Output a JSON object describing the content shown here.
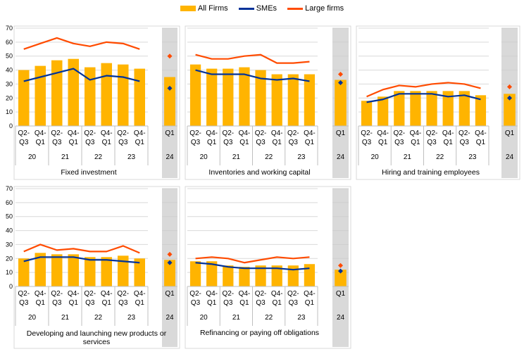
{
  "legend": {
    "all_firms": "All Firms",
    "smes": "SMEs",
    "large_firms": "Large firms"
  },
  "colors": {
    "all_firms": "#FFB400",
    "smes": "#003299",
    "large_firms": "#FF4B00",
    "highlight_band": "#D9D9D9",
    "grid": "#D9D9D9"
  },
  "chart_data": [
    {
      "type": "bar",
      "title": "Fixed investment",
      "ylim": [
        0,
        70
      ],
      "yticks": [
        0,
        10,
        20,
        30,
        40,
        50,
        60,
        70
      ],
      "categories": [
        "Q2-Q3 20",
        "Q4-Q1 20/21",
        "Q2-Q3 21",
        "Q4-Q1 21/22",
        "Q2-Q3 22",
        "Q4-Q1 22/23",
        "Q2-Q3 23",
        "Q4-Q1 23/24"
      ],
      "series": [
        {
          "name": "All Firms",
          "kind": "bar",
          "values": [
            40,
            43,
            47,
            48,
            42,
            45,
            44,
            41
          ]
        },
        {
          "name": "SMEs",
          "kind": "line",
          "values": [
            32,
            35,
            38,
            41,
            33,
            36,
            35,
            32
          ]
        },
        {
          "name": "Large firms",
          "kind": "line",
          "values": [
            55,
            59,
            63,
            59,
            57,
            60,
            59,
            55
          ]
        }
      ],
      "latest": {
        "period": "Q1 24",
        "all_firms": 35,
        "smes": 27,
        "large_firms": 50
      }
    },
    {
      "type": "bar",
      "title": "Inventories and working capital",
      "ylim": [
        0,
        70
      ],
      "yticks": [
        0,
        10,
        20,
        30,
        40,
        50,
        60,
        70
      ],
      "categories": [
        "Q2-Q3 20",
        "Q4-Q1 20/21",
        "Q2-Q3 21",
        "Q4-Q1 21/22",
        "Q2-Q3 22",
        "Q4-Q1 22/23",
        "Q2-Q3 23",
        "Q4-Q1 23/24"
      ],
      "series": [
        {
          "name": "All Firms",
          "kind": "bar",
          "values": [
            44,
            41,
            41,
            42,
            40,
            37,
            37,
            37
          ]
        },
        {
          "name": "SMEs",
          "kind": "line",
          "values": [
            40,
            37,
            37,
            37,
            34,
            33,
            34,
            32
          ]
        },
        {
          "name": "Large firms",
          "kind": "line",
          "values": [
            51,
            48,
            48,
            50,
            51,
            45,
            45,
            46
          ]
        }
      ],
      "latest": {
        "period": "Q1 24",
        "all_firms": 33,
        "smes": 31,
        "large_firms": 37
      }
    },
    {
      "type": "bar",
      "title": "Hiring and training employees",
      "ylim": [
        0,
        70
      ],
      "yticks": [
        0,
        10,
        20,
        30,
        40,
        50,
        60,
        70
      ],
      "categories": [
        "Q2-Q3 20",
        "Q4-Q1 20/21",
        "Q2-Q3 21",
        "Q4-Q1 21/22",
        "Q2-Q3 22",
        "Q4-Q1 22/23",
        "Q2-Q3 23",
        "Q4-Q1 23/24"
      ],
      "series": [
        {
          "name": "All Firms",
          "kind": "bar",
          "values": [
            18,
            21,
            25,
            25,
            25,
            25,
            25,
            22
          ]
        },
        {
          "name": "SMEs",
          "kind": "line",
          "values": [
            17,
            19,
            23,
            23,
            23,
            21,
            22,
            19
          ]
        },
        {
          "name": "Large firms",
          "kind": "line",
          "values": [
            21,
            26,
            29,
            28,
            30,
            31,
            30,
            27
          ]
        }
      ],
      "latest": {
        "period": "Q1 24",
        "all_firms": 23,
        "smes": 20,
        "large_firms": 28
      }
    },
    {
      "type": "bar",
      "title": "Developing and launching new products or services",
      "ylim": [
        0,
        70
      ],
      "yticks": [
        0,
        10,
        20,
        30,
        40,
        50,
        60,
        70
      ],
      "categories": [
        "Q2-Q3 20",
        "Q4-Q1 20/21",
        "Q2-Q3 21",
        "Q4-Q1 21/22",
        "Q2-Q3 22",
        "Q4-Q1 22/23",
        "Q2-Q3 23",
        "Q4-Q1 23/24"
      ],
      "series": [
        {
          "name": "All Firms",
          "kind": "bar",
          "values": [
            20,
            24,
            23,
            23,
            21,
            21,
            22,
            20
          ]
        },
        {
          "name": "SMEs",
          "kind": "line",
          "values": [
            18,
            21,
            21,
            21,
            19,
            19,
            18,
            17
          ]
        },
        {
          "name": "Large firms",
          "kind": "line",
          "values": [
            25,
            30,
            26,
            27,
            25,
            25,
            29,
            24
          ]
        }
      ],
      "latest": {
        "period": "Q1 24",
        "all_firms": 19,
        "smes": 17,
        "large_firms": 23
      }
    },
    {
      "type": "bar",
      "title": "Refinancing or paying off obligations",
      "ylim": [
        0,
        70
      ],
      "yticks": [
        0,
        10,
        20,
        30,
        40,
        50,
        60,
        70
      ],
      "categories": [
        "Q2-Q3 20",
        "Q4-Q1 20/21",
        "Q2-Q3 21",
        "Q4-Q1 21/22",
        "Q2-Q3 22",
        "Q4-Q1 22/23",
        "Q2-Q3 23",
        "Q4-Q1 23/24"
      ],
      "series": [
        {
          "name": "All Firms",
          "kind": "bar",
          "values": [
            18,
            18,
            15,
            14,
            15,
            15,
            15,
            16
          ]
        },
        {
          "name": "SMEs",
          "kind": "line",
          "values": [
            17,
            16,
            14,
            13,
            13,
            13,
            12,
            13
          ]
        },
        {
          "name": "Large firms",
          "kind": "line",
          "values": [
            20,
            21,
            20,
            17,
            19,
            21,
            20,
            21
          ]
        }
      ],
      "latest": {
        "period": "Q1 24",
        "all_firms": 12,
        "smes": 11,
        "large_firms": 15
      }
    }
  ],
  "axis_labels": {
    "x_top": [
      "Q2-",
      "Q4-",
      "Q2-",
      "Q4-",
      "Q2-",
      "Q4-",
      "Q2-",
      "Q4-"
    ],
    "x_bottom": [
      "Q3",
      "Q1",
      "Q3",
      "Q1",
      "Q3",
      "Q1",
      "Q3",
      "Q1"
    ],
    "years": [
      "20",
      "21",
      "22",
      "23"
    ],
    "latest_quarter": "Q1",
    "latest_year": "24"
  }
}
